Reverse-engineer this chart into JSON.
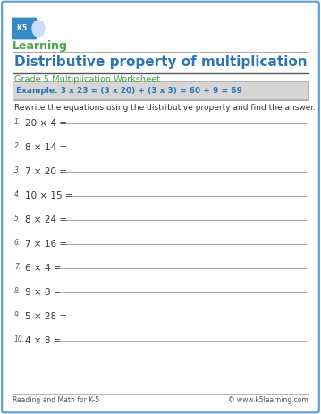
{
  "title": "Distributive property of multiplication",
  "subtitle": "Grade 5 Multiplication Worksheet",
  "example_text": "Example: 3 x 23 = (3 x 20) + (3 x 3) = 60 + 9 = 69",
  "instruction": "Rewrite the equations using the distributive property and find the answer.",
  "problems": [
    [
      "1.",
      "20 × 4 ="
    ],
    [
      "2.",
      "8 × 14 ="
    ],
    [
      "3.",
      "7 × 20 ="
    ],
    [
      "4.",
      "10 × 15 ="
    ],
    [
      "5.",
      "8 × 24 ="
    ],
    [
      "6.",
      "7 × 16 ="
    ],
    [
      "7.",
      "6 × 4 ="
    ],
    [
      "8.",
      "9 × 8 ="
    ],
    [
      "9.",
      "5 × 28 ="
    ],
    [
      "10.",
      "4 × 8 ="
    ]
  ],
  "footer_left": "Reading and Math for K-5",
  "footer_right": "© www.k5learning.com",
  "bg_color": "#ffffff",
  "border_color": "#5b9bd5",
  "title_color": "#2e75b6",
  "subtitle_color": "#4aa34a",
  "example_bg": "#d6d6d6",
  "example_border": "#aaaaaa",
  "example_text_color": "#2e75b6",
  "problem_color": "#333333",
  "num_color": "#555555",
  "line_color": "#aaaaaa",
  "footer_color": "#555555",
  "instruction_color": "#333333",
  "logo_green": "#4aa34a",
  "logo_blue": "#2e75b6"
}
